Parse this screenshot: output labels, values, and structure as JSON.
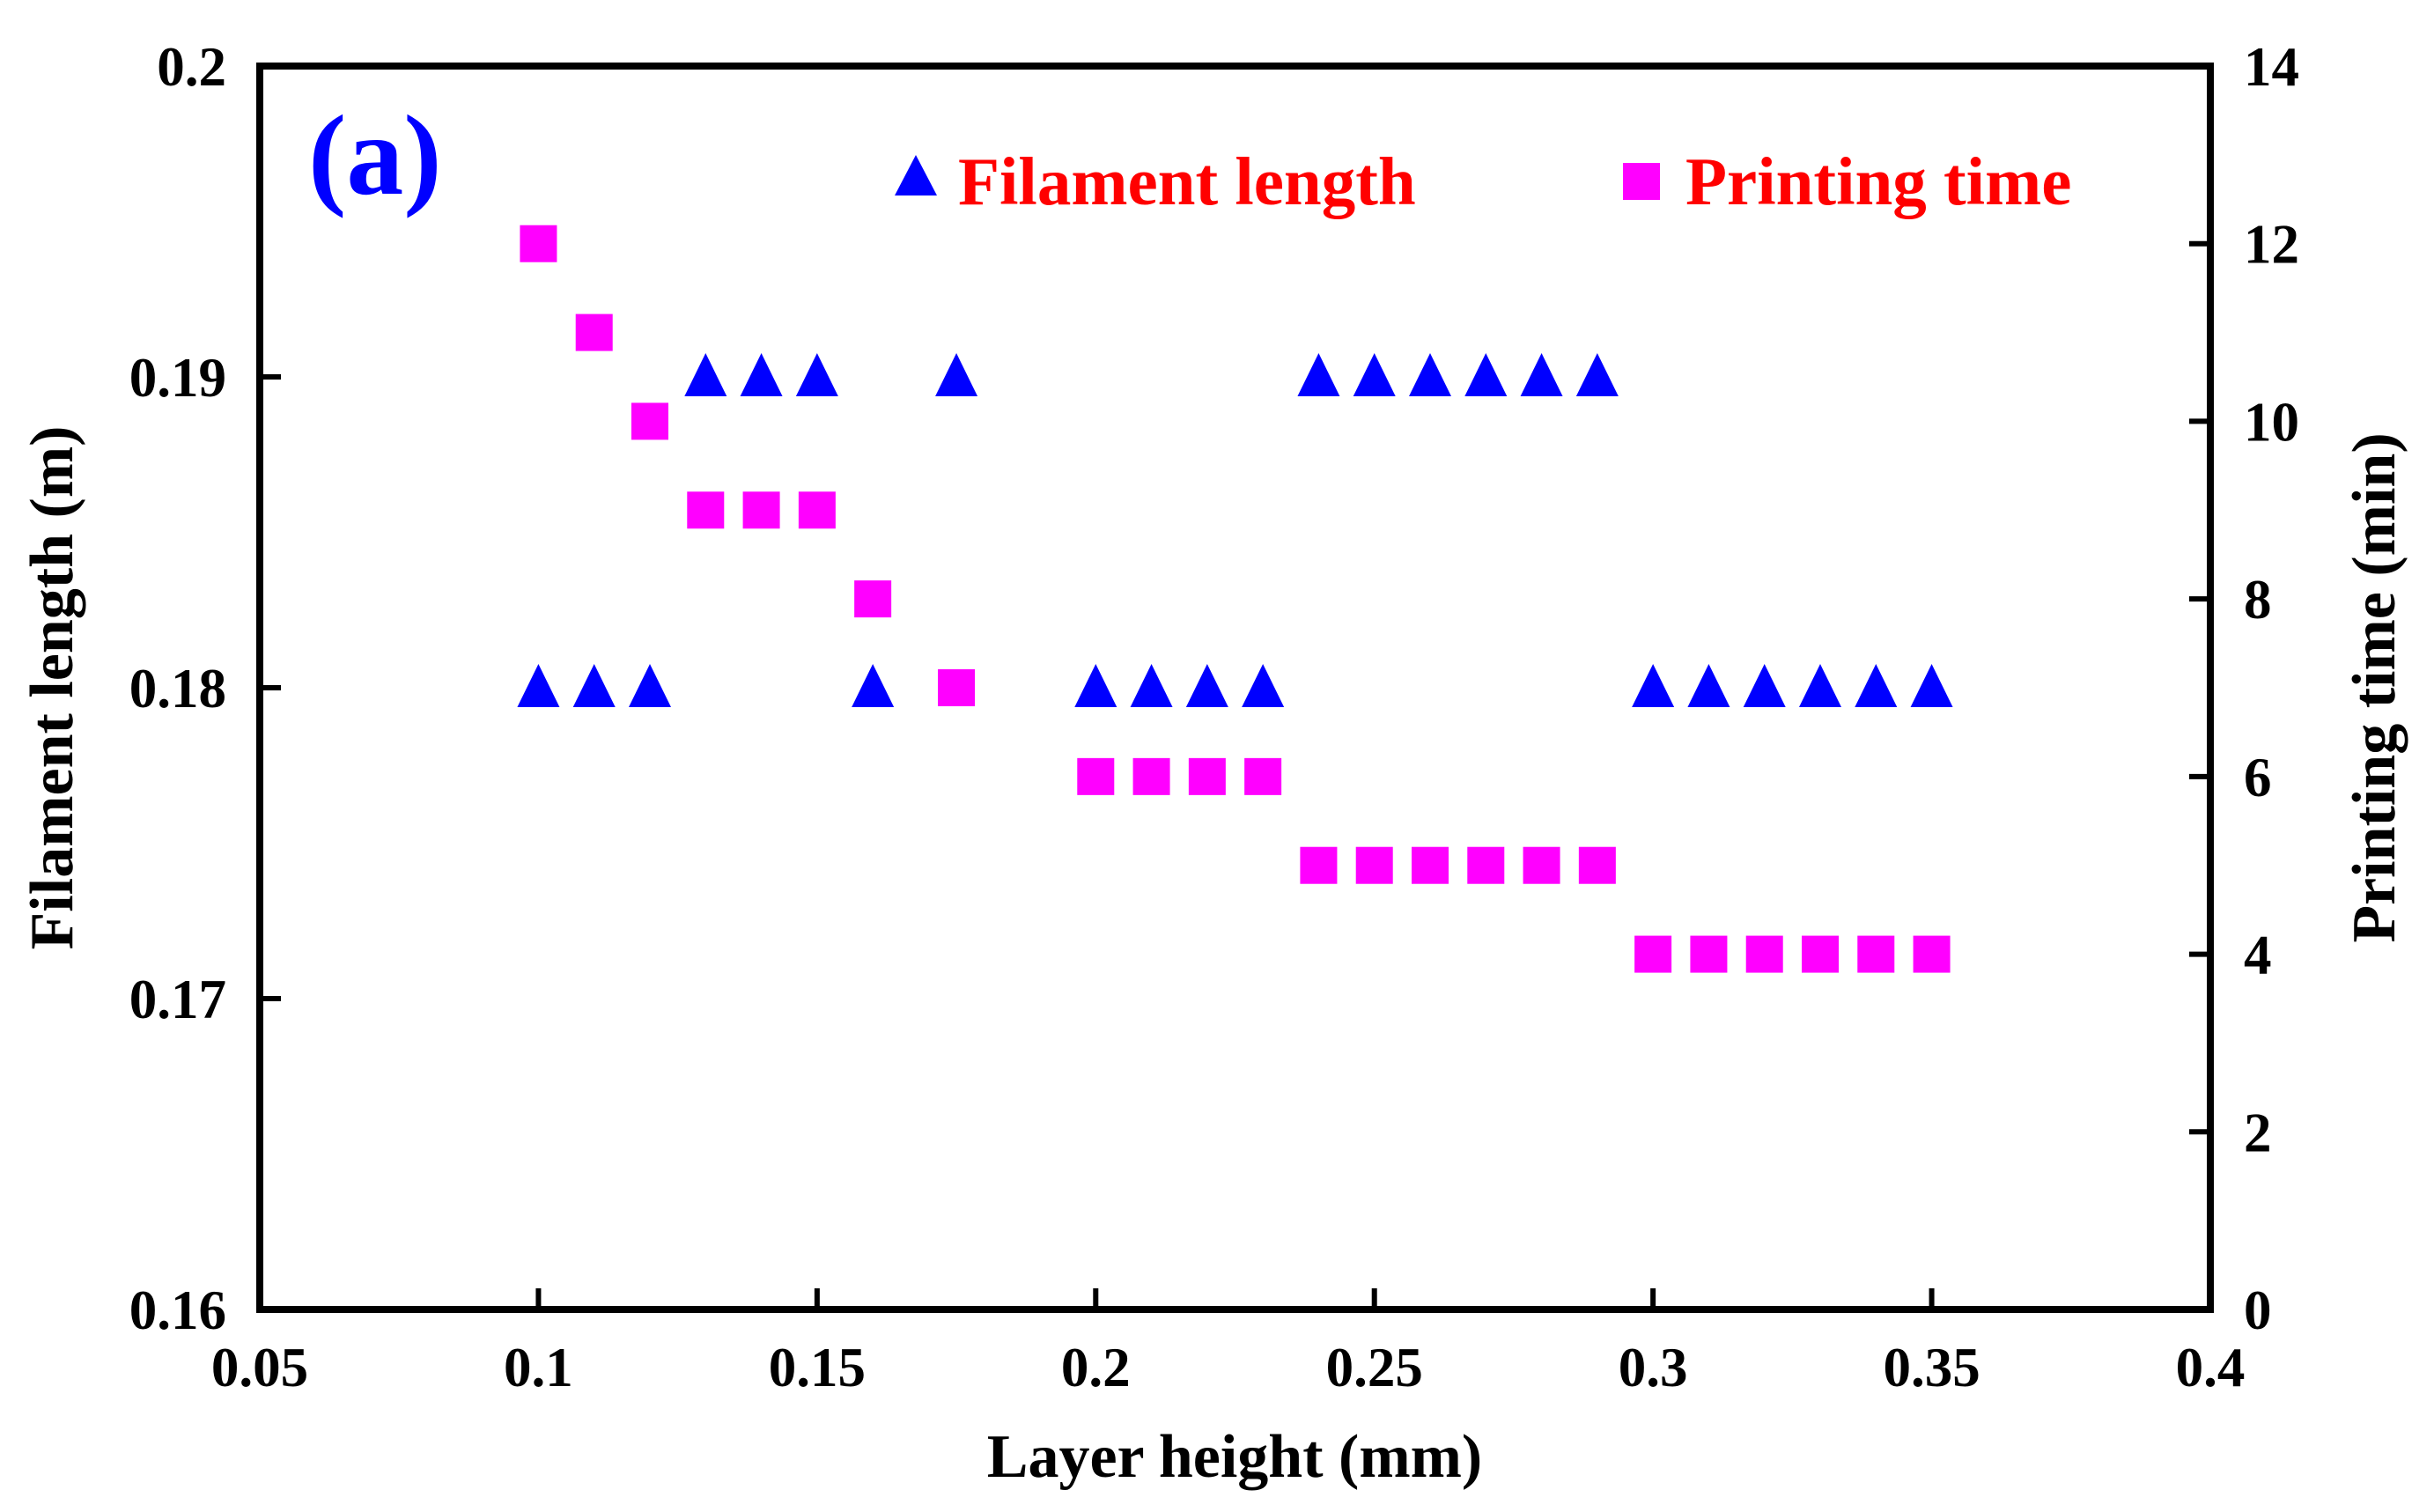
{
  "chart_data": {
    "type": "scatter",
    "panel_label": "(a)",
    "title": "",
    "xlabel": "Layer height (mm)",
    "ylabel": "Filament length (m)",
    "y2label": "Printing time (min)",
    "xlim": [
      0.05,
      0.4
    ],
    "ylim": [
      0.16,
      0.2
    ],
    "y2lim": [
      0,
      14
    ],
    "xticks": [
      "0.05",
      "0.1",
      "0.15",
      "0.2",
      "0.25",
      "0.3",
      "0.35",
      "0.4"
    ],
    "yticks": [
      "0.16",
      "0.17",
      "0.18",
      "0.19",
      "0.2"
    ],
    "y2ticks": [
      "0",
      "2",
      "4",
      "6",
      "8",
      "10",
      "12",
      "14"
    ],
    "grid": false,
    "legend_position": "top",
    "x": [
      0.1,
      0.11,
      0.12,
      0.13,
      0.14,
      0.15,
      0.16,
      0.175,
      0.2,
      0.21,
      0.22,
      0.23,
      0.24,
      0.25,
      0.26,
      0.27,
      0.28,
      0.29,
      0.3,
      0.31,
      0.32,
      0.33,
      0.34,
      0.35
    ],
    "series": [
      {
        "name": "Filament length",
        "axis": "left",
        "marker": "triangle",
        "color": "#0000ff",
        "values": [
          0.18,
          0.18,
          0.18,
          0.19,
          0.19,
          0.19,
          0.18,
          0.19,
          0.18,
          0.18,
          0.18,
          0.18,
          0.19,
          0.19,
          0.19,
          0.19,
          0.19,
          0.19,
          0.18,
          0.18,
          0.18,
          0.18,
          0.18,
          0.18
        ]
      },
      {
        "name": "Printing time",
        "axis": "right",
        "marker": "square",
        "color": "#ff00ff",
        "values": [
          12,
          11,
          10,
          9,
          9,
          9,
          8,
          7,
          6,
          6,
          6,
          6,
          5,
          5,
          5,
          5,
          5,
          5,
          4,
          4,
          4,
          4,
          4,
          4
        ]
      }
    ],
    "colors": {
      "panel_label": "#0000ff",
      "legend_text": "#ff0000",
      "axis": "#000000"
    }
  }
}
